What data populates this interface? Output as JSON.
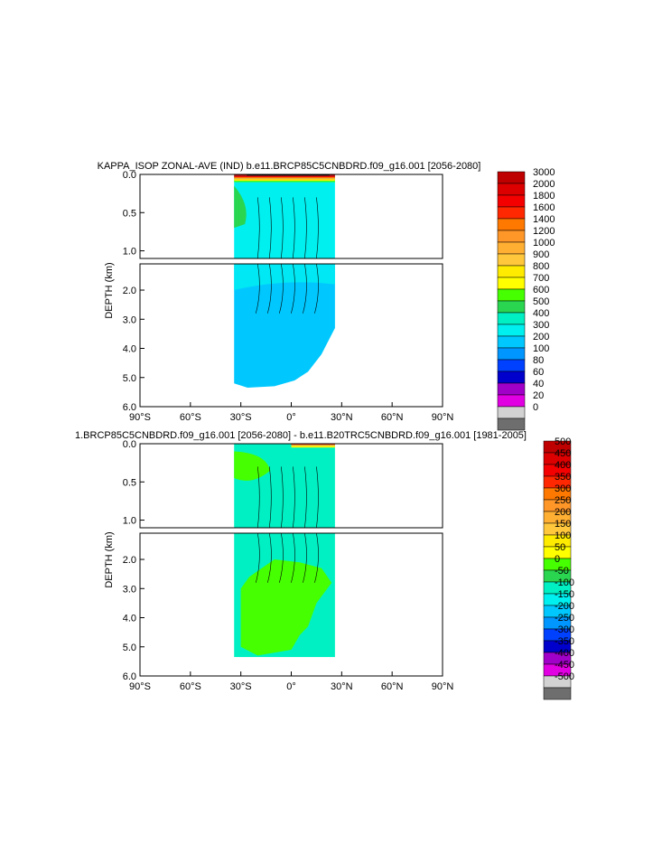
{
  "chart_data": [
    {
      "type": "heatmap",
      "title": "KAPPA_ISOP ZONAL-AVE (IND) b.e11.BRCP85C5CNBDRD.f09_g16.001 [2056-2080]",
      "xlabel": "",
      "ylabel": "DEPTH (km)",
      "x_ticks": [
        "90°S",
        "60°S",
        "30°S",
        "0°",
        "30°N",
        "60°N",
        "90°N"
      ],
      "x_tick_values": [
        -90,
        -60,
        -30,
        0,
        30,
        60,
        90
      ],
      "y_ticks_upper": [
        "0.0",
        "0.5",
        "1.0"
      ],
      "y_ticks_lower": [
        "2.0",
        "3.0",
        "4.0",
        "5.0",
        "6.0"
      ],
      "upper_panel_depth_range_km": [
        0,
        1.1
      ],
      "lower_panel_depth_range_km": [
        1.1,
        6.0
      ],
      "data_lat_range": [
        -34,
        26
      ],
      "data_max_depth_km": 5.35,
      "colorbar_levels": [
        "3000",
        "2000",
        "1800",
        "1600",
        "1400",
        "1200",
        "1000",
        "900",
        "800",
        "700",
        "600",
        "500",
        "400",
        "300",
        "200",
        "100",
        "80",
        "60",
        "40",
        "20",
        "0"
      ],
      "colorbar_colors": [
        "#be0000",
        "#dc0000",
        "#f50000",
        "#ff2800",
        "#ff7800",
        "#ff9628",
        "#ffaf32",
        "#ffc83c",
        "#ffeb00",
        "#ffff00",
        "#46ff00",
        "#2ad550",
        "#00f0c3",
        "#00f0f0",
        "#00c8ff",
        "#0096ff",
        "#0041ff",
        "#0000cd",
        "#a000c8",
        "#e100e1",
        "#d2d2d2",
        "#6e6e6e"
      ],
      "regions": [
        {
          "field": "surface layer 0-0.1 km",
          "value_range": [
            1400,
            3000
          ]
        },
        {
          "field": "southern margin 0.2-0.6 km near 33°S",
          "value_range": [
            600,
            700
          ]
        },
        {
          "field": "thermocline 0.1-1.1 km",
          "value_range": [
            400,
            500
          ]
        },
        {
          "field": "deep ocean 1.1-5.3 km",
          "value_range": [
            200,
            300
          ]
        }
      ]
    },
    {
      "type": "heatmap",
      "title": "1.BRCP85C5CNBDRD.f09_g16.001 [2056-2080] - b.e11.B20TRC5CNBDRD.f09_g16.001 [1981-2005]",
      "xlabel": "",
      "ylabel": "DEPTH (km)",
      "x_ticks": [
        "90°S",
        "60°S",
        "30°S",
        "0°",
        "30°N",
        "60°N",
        "90°N"
      ],
      "x_tick_values": [
        -90,
        -60,
        -30,
        0,
        30,
        60,
        90
      ],
      "y_ticks_upper": [
        "0.0",
        "0.5",
        "1.0"
      ],
      "y_ticks_lower": [
        "2.0",
        "3.0",
        "4.0",
        "5.0",
        "6.0"
      ],
      "upper_panel_depth_range_km": [
        0,
        1.1
      ],
      "lower_panel_depth_range_km": [
        1.1,
        6.0
      ],
      "data_lat_range": [
        -34,
        26
      ],
      "data_max_depth_km": 5.35,
      "colorbar_levels": [
        "500",
        "450",
        "400",
        "350",
        "300",
        "250",
        "200",
        "150",
        "100",
        "50",
        "0",
        "-50",
        "-100",
        "-150",
        "-200",
        "-250",
        "-300",
        "-350",
        "-400",
        "-450",
        "-500"
      ],
      "colorbar_colors": [
        "#be0000",
        "#dc0000",
        "#f50000",
        "#ff2800",
        "#ff7800",
        "#ff9628",
        "#ffaf32",
        "#ffc83c",
        "#ffeb00",
        "#ffff00",
        "#46ff00",
        "#2ad550",
        "#00f0c3",
        "#00f0f0",
        "#00c8ff",
        "#0096ff",
        "#0041ff",
        "#0000cd",
        "#a000c8",
        "#e100e1",
        "#d2d2d2",
        "#6e6e6e"
      ],
      "regions": [
        {
          "field": "background",
          "value_range": [
            -50,
            0
          ]
        },
        {
          "field": "surface layer 0-0.05 km",
          "value_range": [
            100,
            500
          ]
        },
        {
          "field": "southern margin 0.1-0.4 km near 33°S",
          "value_range": [
            0,
            100
          ]
        },
        {
          "field": "deep patch 2.0-5.3 km, 25°S-10°N",
          "value_range": [
            0,
            50
          ]
        }
      ]
    }
  ]
}
